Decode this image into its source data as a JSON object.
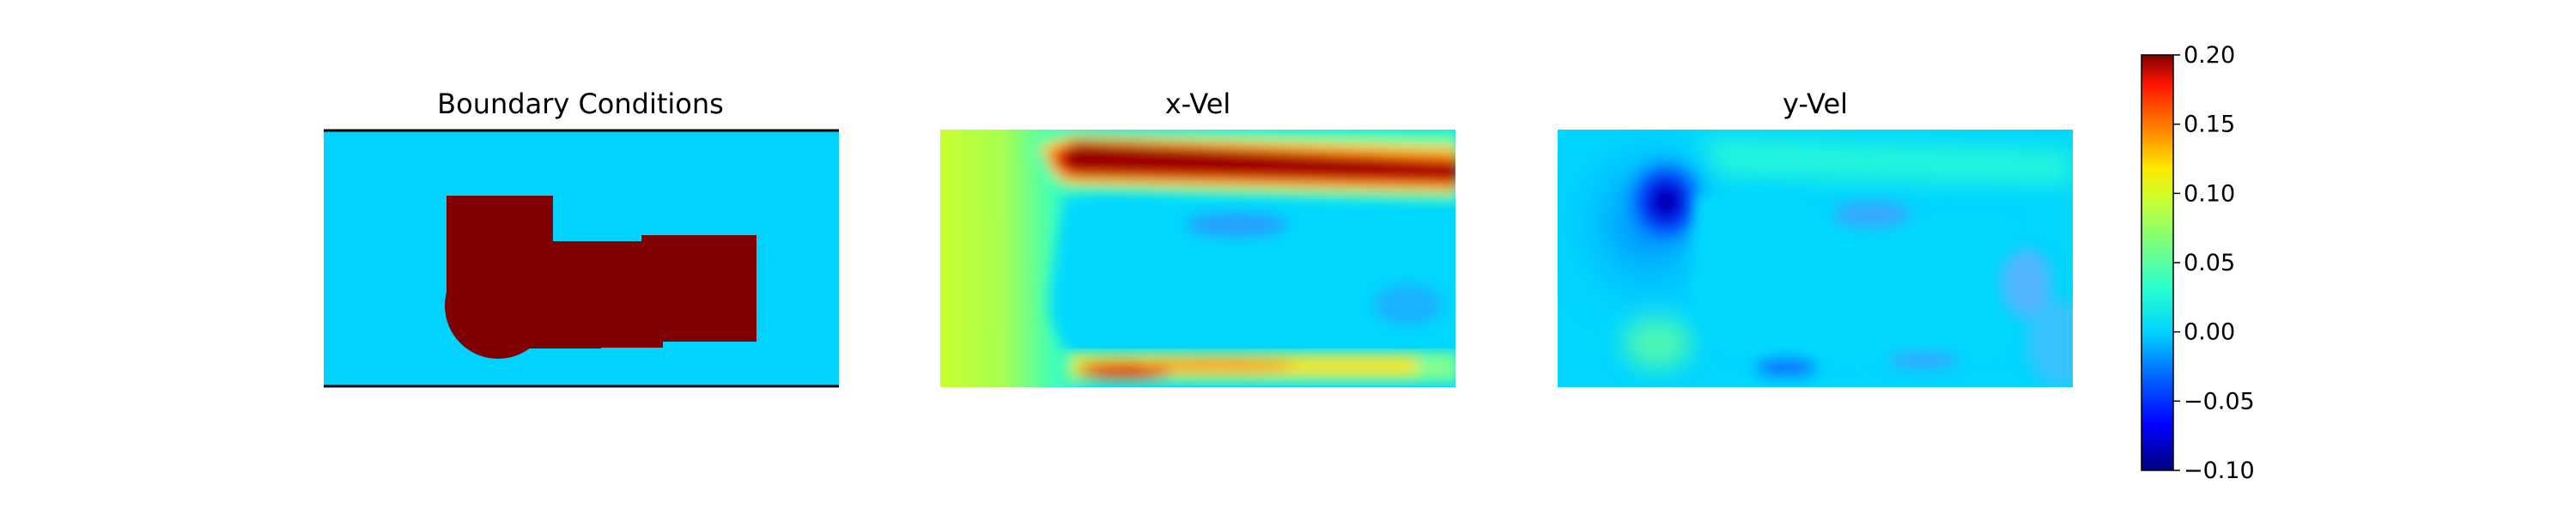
{
  "chart_data": [
    {
      "type": "heatmap",
      "title": "Boundary Conditions",
      "axes_visible": false,
      "colormap": "jet",
      "description_values": {
        "background": 0.0,
        "obstacle": 0.2
      }
    },
    {
      "type": "heatmap",
      "title": "x-Vel",
      "axes_visible": false,
      "colormap": "jet"
    },
    {
      "type": "heatmap",
      "title": "y-Vel",
      "axes_visible": false,
      "colormap": "jet"
    }
  ],
  "colorbar": {
    "vmin": -0.1,
    "vmax": 0.2,
    "ticks": [
      {
        "value": 0.2,
        "label": "0.20"
      },
      {
        "value": 0.15,
        "label": "0.15"
      },
      {
        "value": 0.1,
        "label": "0.10"
      },
      {
        "value": 0.05,
        "label": "0.05"
      },
      {
        "value": 0.0,
        "label": "0.00"
      },
      {
        "value": -0.05,
        "label": "−0.05"
      },
      {
        "value": -0.1,
        "label": "−0.10"
      }
    ],
    "colors": [
      "#00007f",
      "#0000ff",
      "#007fff",
      "#00ffff",
      "#7fff7f",
      "#ffff00",
      "#ff7f00",
      "#ff0000",
      "#7f0000"
    ]
  }
}
